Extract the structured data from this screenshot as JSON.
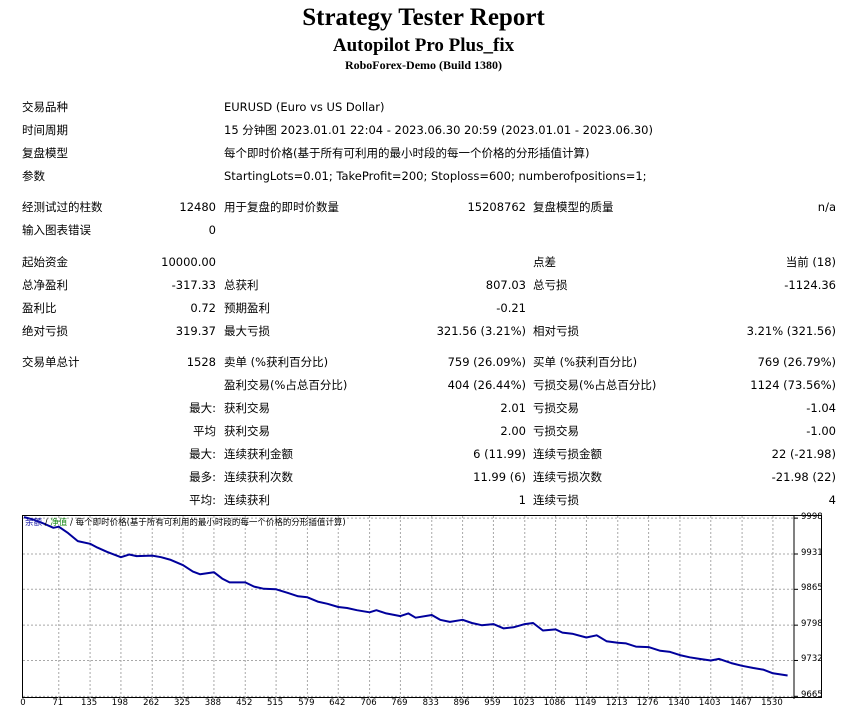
{
  "report": {
    "title": "Strategy Tester Report",
    "expert": "Autopilot Pro Plus_fix",
    "server": "RoboForex-Demo (Build 1380)"
  },
  "info": {
    "symbol_label": "交易品种",
    "symbol_value": "EURUSD (Euro vs US Dollar)",
    "period_label": "时间周期",
    "period_value": "15 分钟图 2023.01.01 22:04 - 2023.06.30 20:59 (2023.01.01 - 2023.06.30)",
    "model_label": "复盘模型",
    "model_value": "每个即时价格(基于所有可利用的最小时段的每一个价格的分形插值计算)",
    "params_label": "参数",
    "params_value": "StartingLots=0.01; TakeProfit=200; Stoploss=600; numberofpositions=1;"
  },
  "bars": {
    "bars_label": "经测试过的柱数",
    "bars_value": "12480",
    "ticks_label": "用于复盘的即时价数量",
    "ticks_value": "15208762",
    "quality_label": "复盘模型的质量",
    "quality_value": "n/a",
    "errors_label": "输入图表错误",
    "errors_value": "0"
  },
  "funds": {
    "deposit_label": "起始资金",
    "deposit_value": "10000.00",
    "spread_label": "点差",
    "spread_value": "当前 (18)",
    "net_label": "总净盈利",
    "net_value": "-317.33",
    "gross_profit_label": "总获利",
    "gross_profit_value": "807.03",
    "gross_loss_label": "总亏损",
    "gross_loss_value": "-1124.36",
    "pf_label": "盈利比",
    "pf_value": "0.72",
    "payoff_label": "预期盈利",
    "payoff_value": "-0.21",
    "abs_dd_label": "绝对亏损",
    "abs_dd_value": "319.37",
    "max_dd_label": "最大亏损",
    "max_dd_value": "321.56 (3.21%)",
    "rel_dd_label": "相对亏损",
    "rel_dd_value": "3.21% (321.56)"
  },
  "trades": {
    "total_label": "交易单总计",
    "total_value": "1528",
    "short_label": "卖单 (%获利百分比)",
    "short_value": "759 (26.09%)",
    "long_label": "买单 (%获利百分比)",
    "long_value": "769 (26.79%)",
    "profit_trades_label": "盈利交易(%占总百分比)",
    "profit_trades_value": "404 (26.44%)",
    "loss_trades_label": "亏损交易(%占总百分比)",
    "loss_trades_value": "1124 (73.56%)",
    "largest_prefix": "最大:",
    "largest_profit_label": "获利交易",
    "largest_profit_value": "2.01",
    "largest_loss_label": "亏损交易",
    "largest_loss_value": "-1.04",
    "average_prefix": "平均",
    "average_profit_label": "获利交易",
    "average_profit_value": "2.00",
    "average_loss_label": "亏损交易",
    "average_loss_value": "-1.00",
    "max_prefix": "最大:",
    "max_cons_wins_label": "连续获利金额",
    "max_cons_wins_value": "6 (11.99)",
    "max_cons_losses_label": "连续亏损金额",
    "max_cons_losses_value": "22 (-21.98)",
    "maximal_prefix": "最多:",
    "maximal_cons_profit_label": "连续获利次数",
    "maximal_cons_profit_value": "11.99 (6)",
    "maximal_cons_loss_label": "连续亏损次数",
    "maximal_cons_loss_value": "-21.98 (22)",
    "avg_cons_prefix": "平均:",
    "avg_cons_wins_label": "连续获利",
    "avg_cons_wins_value": "1",
    "avg_cons_losses_label": "连续亏损",
    "avg_cons_losses_value": "4"
  },
  "chart_legend": {
    "balance": "余额",
    "sep1": " / ",
    "equity": "净值",
    "sep2": " / ",
    "model": "每个即时价格(基于所有可利用的最小时段的每一个价格的分形插值计算)"
  },
  "colors": {
    "balance_line": "#00009c",
    "grid": "#a8a8a8",
    "equity_legend": "#1a8a1a"
  },
  "chart_data": {
    "type": "line",
    "title": "",
    "xlabel": "",
    "ylabel": "",
    "x_ticks": [
      "0",
      "71",
      "135",
      "198",
      "262",
      "325",
      "388",
      "452",
      "515",
      "579",
      "642",
      "706",
      "769",
      "833",
      "896",
      "959",
      "1023",
      "1086",
      "1149",
      "1213",
      "1276",
      "1340",
      "1403",
      "1467",
      "1530"
    ],
    "y_ticks": [
      "9998",
      "9931",
      "9865",
      "9798",
      "9732",
      "9665"
    ],
    "xlim": [
      0,
      1571
    ],
    "ylim": [
      9660,
      10002
    ],
    "series": [
      {
        "name": "余额",
        "x": [
          0,
          20,
          40,
          60,
          71,
          90,
          110,
          135,
          150,
          170,
          198,
          215,
          230,
          262,
          280,
          300,
          325,
          345,
          360,
          388,
          405,
          420,
          452,
          470,
          490,
          515,
          540,
          560,
          579,
          600,
          620,
          642,
          660,
          680,
          706,
          720,
          740,
          769,
          785,
          800,
          833,
          850,
          870,
          896,
          915,
          935,
          959,
          980,
          1000,
          1023,
          1040,
          1060,
          1086,
          1100,
          1120,
          1149,
          1170,
          1190,
          1213,
          1230,
          1250,
          1276,
          1300,
          1320,
          1340,
          1360,
          1380,
          1403,
          1420,
          1445,
          1467,
          1490,
          1510,
          1530,
          1560
        ],
        "y": [
          10000,
          9995,
          9988,
          9980,
          9982,
          9970,
          9955,
          9950,
          9943,
          9935,
          9925,
          9930,
          9927,
          9928,
          9925,
          9920,
          9910,
          9898,
          9893,
          9897,
          9885,
          9878,
          9878,
          9870,
          9866,
          9865,
          9858,
          9852,
          9850,
          9842,
          9838,
          9832,
          9830,
          9826,
          9822,
          9826,
          9820,
          9815,
          9820,
          9812,
          9817,
          9808,
          9804,
          9808,
          9802,
          9798,
          9800,
          9792,
          9794,
          9800,
          9802,
          9788,
          9790,
          9784,
          9782,
          9775,
          9779,
          9768,
          9765,
          9764,
          9758,
          9757,
          9750,
          9748,
          9742,
          9738,
          9735,
          9732,
          9735,
          9727,
          9722,
          9718,
          9715,
          9708,
          9704
        ]
      }
    ]
  }
}
